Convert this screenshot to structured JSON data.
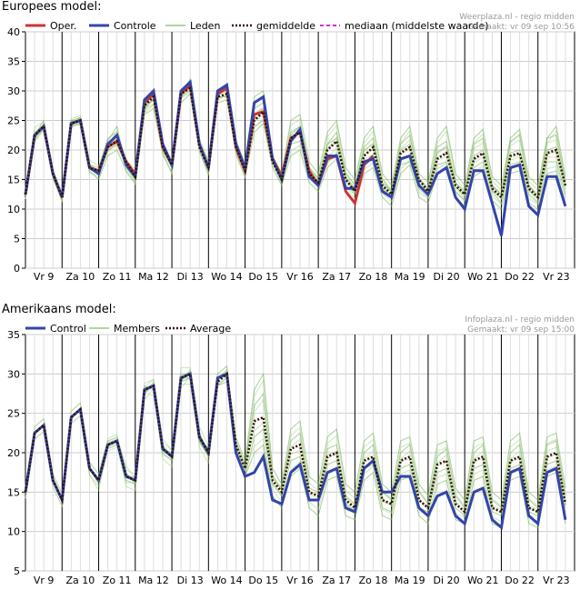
{
  "chart_data": [
    {
      "type": "line",
      "title": "Europees model:",
      "credit_line1": "Weerplaza.nl - regio midden",
      "credit_line2": "Gemaakt: vr 09 sep 10:56",
      "ylim": [
        0,
        40
      ],
      "yticks": [
        0,
        5,
        10,
        15,
        20,
        25,
        30,
        35,
        40
      ],
      "day_labels": [
        "Vr 9",
        "Za 10",
        "Zo 11",
        "Ma 12",
        "Di 13",
        "Wo 14",
        "Do 15",
        "Vr 16",
        "Za 17",
        "Zo 18",
        "Ma 19",
        "Di 20",
        "Wo 21",
        "Do 22",
        "Vr 23"
      ],
      "points_per_day": 4,
      "legend": [
        "Oper.",
        "Controle",
        "Leden",
        "gemiddelde",
        "mediaan (middelste waarde)"
      ],
      "colors": {
        "oper": "#cc3333",
        "control": "#3344aa",
        "members": "#66aa44",
        "mean": "#331100",
        "median": "#cc33cc"
      },
      "series": [
        {
          "name": "Oper.",
          "values": [
            12.5,
            22.5,
            24,
            16,
            12,
            24.5,
            25,
            17,
            16.5,
            20.5,
            21.5,
            18,
            16,
            28,
            29.5,
            20.5,
            17.5,
            29.5,
            31,
            21,
            17,
            29.5,
            30.5,
            20.5,
            16.5,
            26,
            26.5,
            18.5,
            15.5,
            22,
            23,
            16.5,
            14,
            18.5,
            19,
            13,
            11,
            17.5,
            19
          ]
        },
        {
          "name": "Controle",
          "values": [
            12.5,
            22.5,
            24,
            16,
            12,
            24.5,
            25,
            17,
            16,
            21,
            22.5,
            17.5,
            15.5,
            28.5,
            30,
            21,
            17.5,
            30,
            31.5,
            21,
            17,
            30,
            31,
            21,
            17,
            28,
            29,
            18.5,
            15,
            21.5,
            23.5,
            15.5,
            14,
            19,
            19,
            13.5,
            13.5,
            18,
            18.5,
            13,
            12,
            18.5,
            19,
            14,
            12.5,
            16,
            17,
            12,
            10,
            16.5,
            16.5,
            11,
            5.5,
            17,
            17.5,
            10.5,
            9,
            15.5,
            15.5,
            10.5
          ]
        },
        {
          "name": "gemiddelde",
          "values": [
            12.5,
            22.5,
            24,
            16,
            12,
            24.5,
            25,
            17,
            16.5,
            20.5,
            21.5,
            18,
            15.5,
            27.5,
            29,
            20.5,
            17.5,
            29.5,
            30.5,
            20.5,
            17,
            29,
            29.5,
            20.5,
            16.5,
            25,
            26.5,
            18,
            15,
            22,
            23,
            16,
            14.5,
            20,
            21.5,
            15,
            13,
            19,
            20.5,
            14,
            12.5,
            19.5,
            20.5,
            15,
            13,
            18.5,
            19.5,
            14,
            12.5,
            18.5,
            19.5,
            13.5,
            12,
            19,
            19.5,
            13.5,
            12,
            19.5,
            20,
            14
          ]
        }
      ],
      "members": [
        [
          12.5,
          22,
          24.5,
          16.5,
          12,
          25,
          25.5,
          17.5,
          17,
          22,
          23,
          18.5,
          16,
          28.5,
          29.5,
          21,
          18,
          30,
          31.5,
          21.5,
          18,
          30,
          31,
          21.5,
          17.5,
          27,
          28,
          19,
          16,
          23,
          24,
          17,
          15,
          21,
          22,
          16,
          14,
          20,
          21,
          15,
          13,
          20,
          21,
          15,
          13.5,
          19.5,
          20.5,
          14.5,
          13,
          19,
          20,
          14,
          12.5,
          19.5,
          20,
          14,
          12.5,
          20,
          20.5,
          14.5
        ],
        [
          12.5,
          23,
          24,
          15.5,
          11.5,
          24,
          24.5,
          16.5,
          15,
          19,
          20,
          16.5,
          14.5,
          26,
          27,
          19.5,
          16,
          28,
          29.5,
          20,
          16,
          28,
          28.5,
          19.5,
          15.5,
          23,
          24.5,
          17,
          14,
          19,
          20,
          14.5,
          13,
          17,
          18.5,
          13,
          11,
          16,
          17,
          12,
          10.5,
          16,
          17.5,
          12,
          11,
          16,
          17,
          12,
          10.5,
          15.5,
          16.5,
          11.5,
          10,
          16,
          16.5,
          11,
          10,
          16,
          16.5,
          11
        ],
        [
          12.5,
          22.5,
          25,
          16,
          12.5,
          25,
          25,
          17,
          16,
          21.5,
          24,
          17,
          15,
          27,
          30,
          20,
          17,
          29.5,
          32,
          20.5,
          16.5,
          29,
          30.5,
          20,
          16,
          29,
          30,
          19,
          16,
          25,
          26,
          18,
          16,
          23,
          25,
          17,
          15,
          22,
          24,
          16,
          14,
          22,
          24,
          16,
          14.5,
          22,
          24,
          16,
          14,
          22,
          23.5,
          15.5,
          14,
          22,
          23.5,
          15.5,
          14,
          22,
          24,
          15.5
        ],
        [
          12.5,
          22,
          23.5,
          16,
          12,
          24.5,
          25,
          17.5,
          16.5,
          20,
          21,
          17.5,
          16,
          27.5,
          28.5,
          20.5,
          17.5,
          29,
          30,
          21,
          17.5,
          29,
          29,
          21,
          17,
          24,
          25,
          18,
          15,
          21,
          21.5,
          16,
          14,
          18,
          19.5,
          14,
          12.5,
          17.5,
          18.5,
          13.5,
          12,
          17.5,
          18,
          13.5,
          12,
          17.5,
          18,
          13,
          11.5,
          17,
          18,
          13,
          11,
          17.5,
          18,
          12.5,
          11,
          18,
          18,
          12.5
        ],
        [
          12.5,
          22.5,
          24,
          16,
          12,
          24.5,
          25.5,
          17,
          16.5,
          20.5,
          22,
          18,
          15.5,
          27,
          28.5,
          20,
          17,
          29.5,
          30.5,
          20.5,
          17,
          29.5,
          30,
          20.5,
          16.5,
          26,
          27,
          18.5,
          15,
          22.5,
          24,
          16.5,
          14.5,
          21,
          23,
          15.5,
          13.5,
          20.5,
          22,
          14.5,
          13,
          21,
          22.5,
          15,
          13,
          20.5,
          21.5,
          14.5,
          12.5,
          21,
          22,
          14,
          12.5,
          21.5,
          22.5,
          14,
          12,
          22,
          22.5,
          14.5
        ]
      ]
    },
    {
      "type": "line",
      "title": "Amerikaans model:",
      "credit_line1": "Infoplaza.nl - regio midden",
      "credit_line2": "Gemaakt: vr 09 sep 15:00",
      "ylim": [
        5,
        35
      ],
      "yticks": [
        5,
        10,
        15,
        20,
        25,
        30,
        35
      ],
      "day_labels": [
        "Vr 9",
        "Za 10",
        "Zo 11",
        "Ma 12",
        "Di 13",
        "Wo 14",
        "Do 15",
        "Vr 16",
        "Za 17",
        "Zo 18",
        "Ma 19",
        "Di 20",
        "Wo 21",
        "Do 22",
        "Vr 23"
      ],
      "points_per_day": 4,
      "legend": [
        "Control",
        "Members",
        "Average"
      ],
      "colors": {
        "control": "#3344aa",
        "members": "#66aa44",
        "mean": "#331100"
      },
      "series": [
        {
          "name": "Control",
          "values": [
            15,
            22.5,
            23.5,
            16.5,
            14,
            24.5,
            25.5,
            18,
            16.5,
            21,
            21.5,
            17,
            16.5,
            28,
            28.5,
            20.5,
            19.5,
            29.5,
            30,
            22,
            20,
            29.5,
            30,
            20,
            17,
            17.5,
            19.5,
            14,
            13.5,
            17.5,
            18.5,
            14,
            14,
            17.5,
            18,
            13,
            12.5,
            18,
            19,
            15,
            15,
            17,
            17,
            13,
            12,
            14.5,
            15,
            12,
            11,
            15,
            15.5,
            11.5,
            10.5,
            17.5,
            18,
            12,
            11,
            17.5,
            18,
            11.5
          ]
        },
        {
          "name": "Average",
          "values": [
            15,
            22.5,
            23.5,
            16.5,
            14,
            24.5,
            25.5,
            18,
            16.5,
            21,
            21.5,
            17,
            16.5,
            28,
            28.5,
            20.5,
            19.5,
            29.5,
            30,
            22,
            20,
            29,
            30,
            21,
            18,
            24,
            24.5,
            16.5,
            15,
            20.5,
            21,
            15,
            14.5,
            19.5,
            20,
            14,
            13,
            19,
            19.5,
            14,
            13.5,
            19,
            19.5,
            14,
            13,
            18.5,
            19,
            13.5,
            12.5,
            19,
            19.5,
            13,
            12.5,
            19,
            19.5,
            13,
            12.5,
            19.5,
            20,
            13.5
          ]
        }
      ],
      "members": [
        [
          15,
          22.5,
          23.5,
          16.5,
          14,
          24.5,
          25.5,
          18,
          16,
          21.5,
          22,
          16.5,
          16,
          27.5,
          29,
          20,
          19,
          29,
          30.5,
          21.5,
          19.5,
          29.5,
          30.5,
          22,
          19,
          28,
          30,
          18,
          16,
          23,
          24,
          17,
          16,
          22,
          23,
          16,
          15,
          21.5,
          22.5,
          16,
          15,
          21.5,
          22,
          16,
          14.5,
          21,
          21.5,
          15.5,
          14,
          21.5,
          22,
          15,
          14,
          21.5,
          22.5,
          15,
          14,
          22,
          22.5,
          15.5
        ],
        [
          15,
          22.5,
          23.5,
          16.5,
          14,
          24.5,
          25.5,
          18,
          16.5,
          20.5,
          21,
          17.5,
          16,
          28,
          28.5,
          21,
          19.5,
          30,
          30,
          22.5,
          20,
          28.5,
          29.5,
          20,
          17,
          20,
          21,
          14.5,
          13,
          17,
          18,
          13,
          12,
          16.5,
          17,
          12,
          11.5,
          16.5,
          17.5,
          12,
          11.5,
          16.5,
          17,
          12,
          11,
          16,
          16.5,
          11.5,
          11,
          16.5,
          17,
          11,
          10.5,
          16.5,
          17,
          11,
          10.5,
          17,
          17.5,
          11
        ],
        [
          15,
          22.5,
          23.5,
          16.5,
          14,
          24.5,
          25.5,
          18,
          16.5,
          21,
          21.5,
          17,
          17,
          28.5,
          28,
          20.5,
          20,
          29.5,
          29.5,
          22,
          20.5,
          30,
          31,
          21.5,
          18.5,
          26,
          27.5,
          17,
          15.5,
          21.5,
          22.5,
          15.5,
          15,
          20.5,
          21,
          14.5,
          13.5,
          20,
          21,
          15,
          14,
          20,
          21,
          15,
          13.5,
          19.5,
          20.5,
          14.5,
          13,
          20,
          21,
          14,
          13,
          20,
          21,
          14,
          13,
          21,
          21.5,
          14.5
        ],
        [
          15,
          22.5,
          23.5,
          16.5,
          14,
          24.5,
          25.5,
          18,
          16.5,
          21,
          21.5,
          17,
          16.5,
          27.5,
          28.5,
          20.5,
          19.5,
          29,
          29.5,
          21.5,
          19.5,
          28.5,
          29,
          20,
          17,
          22,
          23,
          16,
          14.5,
          19,
          19.5,
          14,
          14,
          18.5,
          19,
          13.5,
          12.5,
          18,
          18.5,
          13,
          12.5,
          18,
          18.5,
          13,
          12.5,
          17.5,
          18,
          13,
          12,
          18,
          18.5,
          12.5,
          12,
          18,
          18.5,
          12.5,
          12,
          18.5,
          19,
          13
        ]
      ]
    }
  ]
}
